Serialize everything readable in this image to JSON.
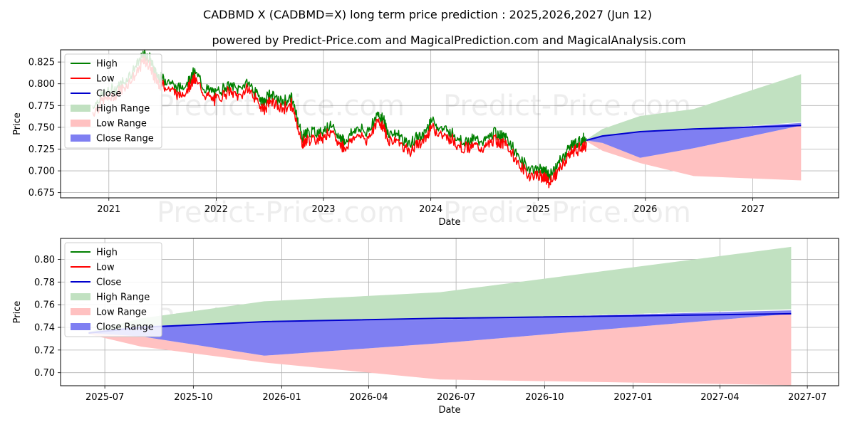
{
  "page_title": "CADBMD X (CADBMD=X) long term price prediction : 2025,2026,2027 (Jun 12)",
  "page_subtitle": "powered by Predict-Price.com and MagicalPrediction.com and MagicalAnalysis.com",
  "watermark": "Predict-Price.com",
  "colors": {
    "high": "#008000",
    "low": "#ff0000",
    "close": "#0000cd",
    "high_range": "#c1e1c1",
    "low_range": "#ffc1c1",
    "close_range": "#7f7ff2"
  },
  "legend": [
    "High",
    "Low",
    "Close",
    "High Range",
    "Low Range",
    "Close Range"
  ],
  "chart_data": [
    {
      "type": "line",
      "name": "long-term",
      "xlabel": "Date",
      "ylabel": "Price",
      "xlim": [
        2020.55,
        2027.8
      ],
      "ylim": [
        0.669,
        0.839
      ],
      "xticks": [
        2021,
        2022,
        2023,
        2024,
        2025,
        2026,
        2027
      ],
      "xtick_labels": [
        "2021",
        "2022",
        "2023",
        "2024",
        "2025",
        "2026",
        "2027"
      ],
      "yticks": [
        0.675,
        0.7,
        0.725,
        0.75,
        0.775,
        0.8,
        0.825
      ],
      "ytick_labels": [
        "0.675",
        "0.700",
        "0.725",
        "0.750",
        "0.775",
        "0.800",
        "0.825"
      ],
      "legend_position": "upper-left",
      "history_x": [
        2020.85,
        2020.95,
        2021.05,
        2021.15,
        2021.25,
        2021.33,
        2021.38,
        2021.43,
        2021.48,
        2021.55,
        2021.65,
        2021.75,
        2021.8,
        2021.9,
        2022.0,
        2022.1,
        2022.2,
        2022.3,
        2022.4,
        2022.45,
        2022.5,
        2022.6,
        2022.7,
        2022.75,
        2022.8,
        2022.85,
        2022.95,
        2023.05,
        2023.15,
        2023.2,
        2023.3,
        2023.4,
        2023.5,
        2023.55,
        2023.6,
        2023.7,
        2023.8,
        2023.87,
        2023.95,
        2024.0,
        2024.1,
        2024.2,
        2024.3,
        2024.4,
        2024.5,
        2024.6,
        2024.65,
        2024.7,
        2024.8,
        2024.9,
        2025.0,
        2025.05,
        2025.1,
        2025.17,
        2025.25,
        2025.3,
        2025.35,
        2025.42,
        2025.45
      ],
      "history_close": [
        0.77,
        0.785,
        0.79,
        0.8,
        0.815,
        0.83,
        0.825,
        0.81,
        0.802,
        0.8,
        0.79,
        0.8,
        0.81,
        0.79,
        0.785,
        0.795,
        0.79,
        0.798,
        0.78,
        0.775,
        0.785,
        0.775,
        0.78,
        0.76,
        0.735,
        0.74,
        0.74,
        0.748,
        0.735,
        0.73,
        0.745,
        0.74,
        0.76,
        0.757,
        0.74,
        0.738,
        0.725,
        0.735,
        0.74,
        0.755,
        0.745,
        0.74,
        0.73,
        0.732,
        0.73,
        0.74,
        0.735,
        0.735,
        0.715,
        0.7,
        0.698,
        0.697,
        0.69,
        0.7,
        0.715,
        0.725,
        0.728,
        0.732,
        0.735
      ],
      "forecast_x": [
        2025.45,
        2025.6,
        2025.95,
        2026.45,
        2027.45
      ],
      "forecast": {
        "high_range": {
          "upper": [
            0.736,
            0.748,
            0.763,
            0.771,
            0.811
          ],
          "lower": [
            0.736,
            0.741,
            0.745,
            0.747,
            0.756
          ]
        },
        "low_range": {
          "upper": [
            0.735,
            0.732,
            0.715,
            0.726,
            0.752
          ],
          "lower": [
            0.734,
            0.723,
            0.709,
            0.694,
            0.689
          ]
        },
        "close_range": {
          "upper": [
            0.736,
            0.741,
            0.745,
            0.747,
            0.755
          ],
          "lower": [
            0.735,
            0.732,
            0.715,
            0.726,
            0.752
          ]
        },
        "close": [
          0.735,
          0.74,
          0.745,
          0.748,
          0.752
        ]
      }
    },
    {
      "type": "line",
      "name": "short-term",
      "xlabel": "Date",
      "ylabel": "Price",
      "xlim": [
        2025.37,
        2027.585
      ],
      "ylim": [
        0.6885,
        0.8185
      ],
      "xticks": [
        2025.496,
        2025.748,
        2026.0,
        2026.247,
        2026.496,
        2026.748,
        2027.0,
        2027.247,
        2027.496
      ],
      "xtick_labels": [
        "2025-07",
        "2025-10",
        "2026-01",
        "2026-04",
        "2026-07",
        "2026-10",
        "2027-01",
        "2027-04",
        "2027-07"
      ],
      "yticks": [
        0.7,
        0.72,
        0.74,
        0.76,
        0.78,
        0.8
      ],
      "ytick_labels": [
        "0.70",
        "0.72",
        "0.74",
        "0.76",
        "0.78",
        "0.80"
      ],
      "legend_position": "upper-left",
      "forecast_x": [
        2025.45,
        2025.6,
        2025.95,
        2026.45,
        2027.45
      ],
      "forecast": {
        "high_range": {
          "upper": [
            0.736,
            0.748,
            0.763,
            0.771,
            0.811
          ],
          "lower": [
            0.736,
            0.741,
            0.745,
            0.747,
            0.756
          ]
        },
        "low_range": {
          "upper": [
            0.735,
            0.732,
            0.715,
            0.726,
            0.752
          ],
          "lower": [
            0.734,
            0.723,
            0.709,
            0.694,
            0.689
          ]
        },
        "close_range": {
          "upper": [
            0.736,
            0.741,
            0.745,
            0.747,
            0.755
          ],
          "lower": [
            0.735,
            0.732,
            0.715,
            0.726,
            0.752
          ]
        },
        "close": [
          0.735,
          0.74,
          0.745,
          0.748,
          0.752
        ]
      }
    }
  ]
}
